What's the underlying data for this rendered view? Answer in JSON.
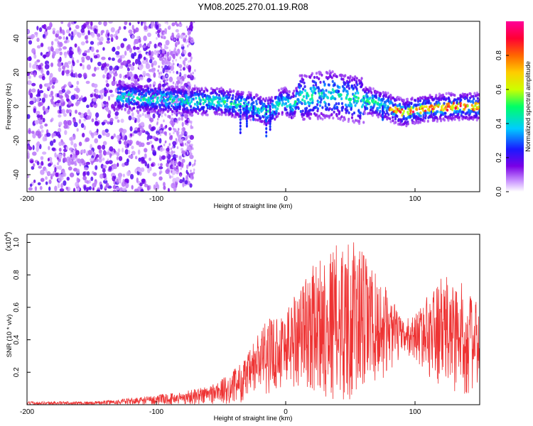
{
  "title": "YM08.2025.270.01.19.R08",
  "chart_data": [
    {
      "type": "heatmap",
      "name": "spectrogram",
      "xlabel": "Height of straight line (km)",
      "ylabel": "Frequency (Hz)",
      "xlim": [
        -200,
        150
      ],
      "ylim": [
        -50,
        50
      ],
      "xticks": [
        -200,
        -100,
        0,
        100
      ],
      "yticks": [
        -40,
        -20,
        0,
        20,
        40
      ],
      "colorbar": {
        "label": "Normalized spectral amplitude",
        "range": [
          0,
          1
        ],
        "ticks": [
          "0.0",
          "0.2",
          "0.4",
          "0.6",
          "0.8"
        ],
        "tick_values": [
          0.0,
          0.2,
          0.4,
          0.6,
          0.8
        ],
        "colors": [
          "#ffffff",
          "#cc99ff",
          "#7a00e6",
          "#1a1aff",
          "#00ccff",
          "#00ff66",
          "#ccff00",
          "#ffcc00",
          "#ff6600",
          "#ff0033",
          "#ff0099"
        ]
      },
      "ridge_frequency_hz": [
        {
          "x": -128,
          "y": 6
        },
        {
          "x": -110,
          "y": 5
        },
        {
          "x": -90,
          "y": 4
        },
        {
          "x": -70,
          "y": 3
        },
        {
          "x": -50,
          "y": 3
        },
        {
          "x": -35,
          "y": 1
        },
        {
          "x": -25,
          "y": 0
        },
        {
          "x": -15,
          "y": -3
        },
        {
          "x": -10,
          "y": -2
        },
        {
          "x": -5,
          "y": 2
        },
        {
          "x": 0,
          "y": 3
        },
        {
          "x": 5,
          "y": 0
        },
        {
          "x": 10,
          "y": 5
        },
        {
          "x": 20,
          "y": 6
        },
        {
          "x": 35,
          "y": 7
        },
        {
          "x": 50,
          "y": 5
        },
        {
          "x": 65,
          "y": 3
        },
        {
          "x": 75,
          "y": 1
        },
        {
          "x": 85,
          "y": -2
        },
        {
          "x": 92,
          "y": -4
        },
        {
          "x": 100,
          "y": -2
        },
        {
          "x": 115,
          "y": -1
        },
        {
          "x": 130,
          "y": 0
        },
        {
          "x": 150,
          "y": 0
        }
      ]
    },
    {
      "type": "line",
      "name": "snr",
      "xlabel": "Height of straight line (km)",
      "ylabel": "SNR (10 * v/v)",
      "multiplier_label": "(x10",
      "multiplier_exp": "4",
      "multiplier_close": ")",
      "xlim": [
        -200,
        150
      ],
      "ylim": [
        0,
        1.05
      ],
      "xticks": [
        -200,
        -100,
        0,
        100
      ],
      "yticks": [
        0.2,
        0.4,
        0.6,
        0.8,
        1.0
      ],
      "ytick_labels": [
        "0.2",
        "0.4",
        "0.6",
        "0.8",
        "1.0"
      ],
      "color": "#ee3333",
      "envelope_x": [
        -200,
        -150,
        -120,
        -100,
        -80,
        -60,
        -45,
        -30,
        -20,
        -10,
        0,
        10,
        20,
        30,
        40,
        50,
        60,
        70,
        80,
        90,
        100,
        110,
        120,
        130,
        140,
        150
      ],
      "envelope_upper": [
        0.02,
        0.02,
        0.04,
        0.06,
        0.08,
        0.12,
        0.18,
        0.3,
        0.48,
        0.55,
        0.6,
        0.75,
        0.85,
        0.95,
        1.0,
        1.02,
        0.95,
        0.8,
        0.7,
        0.52,
        0.56,
        0.68,
        0.78,
        0.8,
        0.72,
        0.6
      ],
      "envelope_lower": [
        0.0,
        0.0,
        0.0,
        0.0,
        0.0,
        0.0,
        0.0,
        0.02,
        0.05,
        0.08,
        0.1,
        0.1,
        0.08,
        0.04,
        0.02,
        0.01,
        0.05,
        0.12,
        0.2,
        0.3,
        0.28,
        0.18,
        0.1,
        0.05,
        0.06,
        0.08
      ]
    }
  ]
}
